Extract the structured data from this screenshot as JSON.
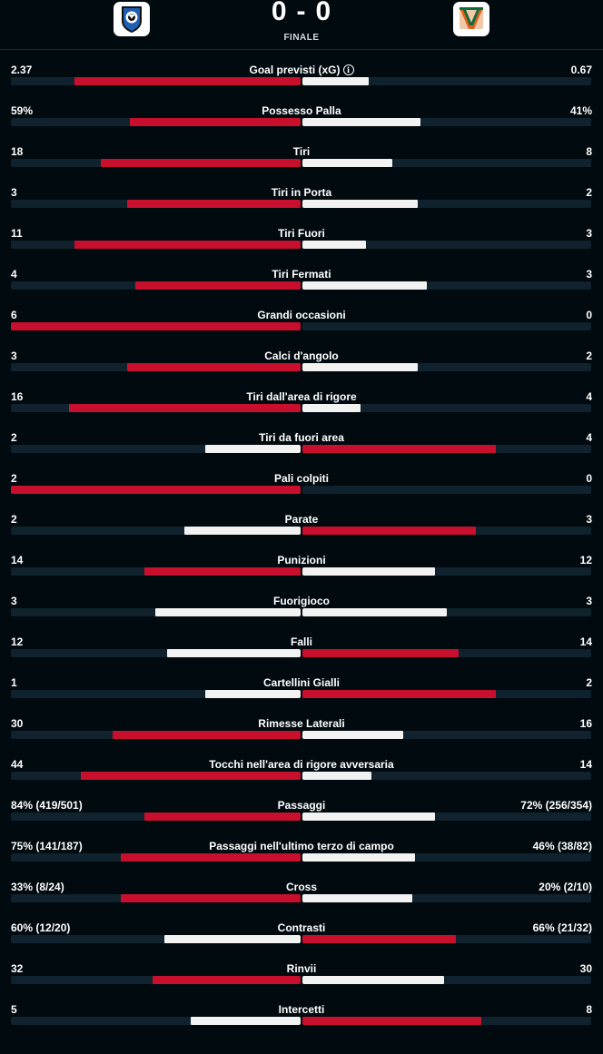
{
  "match": {
    "home_score": "0",
    "separator": "-",
    "away_score": "0",
    "status": "FINALE",
    "home_logo_icon": "atalanta-crest-icon",
    "away_logo_icon": "venezia-crest-icon"
  },
  "colors": {
    "leader": "#c8102e",
    "trailer": "#f2f2f2",
    "track": "#0f222d",
    "background": "#010a0f"
  },
  "stats": [
    {
      "label": "Goal previsti (xG)",
      "home": "2.37",
      "away": "0.67",
      "home_share": 0.78,
      "away_share": 0.23,
      "info": true
    },
    {
      "label": "Possesso Palla",
      "home": "59%",
      "away": "41%",
      "home_share": 0.59,
      "away_share": 0.41
    },
    {
      "label": "Tiri",
      "home": "18",
      "away": "8",
      "home_share": 0.69,
      "away_share": 0.31
    },
    {
      "label": "Tiri in Porta",
      "home": "3",
      "away": "2",
      "home_share": 0.6,
      "away_share": 0.4
    },
    {
      "label": "Tiri Fuori",
      "home": "11",
      "away": "3",
      "home_share": 0.78,
      "away_share": 0.22
    },
    {
      "label": "Tiri Fermati",
      "home": "4",
      "away": "3",
      "home_share": 0.57,
      "away_share": 0.43
    },
    {
      "label": "Grandi occasioni",
      "home": "6",
      "away": "0",
      "home_share": 1.0,
      "away_share": 0.0
    },
    {
      "label": "Calci d'angolo",
      "home": "3",
      "away": "2",
      "home_share": 0.6,
      "away_share": 0.4
    },
    {
      "label": "Tiri dall'area di rigore",
      "home": "16",
      "away": "4",
      "home_share": 0.8,
      "away_share": 0.2
    },
    {
      "label": "Tiri da fuori area",
      "home": "2",
      "away": "4",
      "home_share": 0.33,
      "away_share": 0.67
    },
    {
      "label": "Pali colpiti",
      "home": "2",
      "away": "0",
      "home_share": 1.0,
      "away_share": 0.0
    },
    {
      "label": "Parate",
      "home": "2",
      "away": "3",
      "home_share": 0.4,
      "away_share": 0.6
    },
    {
      "label": "Punizioni",
      "home": "14",
      "away": "12",
      "home_share": 0.54,
      "away_share": 0.46
    },
    {
      "label": "Fuorigioco",
      "home": "3",
      "away": "3",
      "home_share": 0.5,
      "away_share": 0.5,
      "tie": true
    },
    {
      "label": "Falli",
      "home": "12",
      "away": "14",
      "home_share": 0.46,
      "away_share": 0.54
    },
    {
      "label": "Cartellini Gialli",
      "home": "1",
      "away": "2",
      "home_share": 0.33,
      "away_share": 0.67
    },
    {
      "label": "Rimesse Laterali",
      "home": "30",
      "away": "16",
      "home_share": 0.65,
      "away_share": 0.35
    },
    {
      "label": "Tocchi nell'area di rigore avversaria",
      "home": "44",
      "away": "14",
      "home_share": 0.76,
      "away_share": 0.24
    },
    {
      "label": "Passaggi",
      "home": "84% (419/501)",
      "away": "72% (256/354)",
      "home_share": 0.54,
      "away_share": 0.46
    },
    {
      "label": "Passaggi nell'ultimo terzo di campo",
      "home": "75% (141/187)",
      "away": "46% (38/82)",
      "home_share": 0.62,
      "away_share": 0.39
    },
    {
      "label": "Cross",
      "home": "33% (8/24)",
      "away": "20% (2/10)",
      "home_share": 0.62,
      "away_share": 0.38
    },
    {
      "label": "Contrasti",
      "home": "60% (12/20)",
      "away": "66% (21/32)",
      "home_share": 0.47,
      "away_share": 0.53
    },
    {
      "label": "Rinvii",
      "home": "32",
      "away": "30",
      "home_share": 0.51,
      "away_share": 0.49
    },
    {
      "label": "Intercetti",
      "home": "5",
      "away": "8",
      "home_share": 0.38,
      "away_share": 0.62
    }
  ]
}
